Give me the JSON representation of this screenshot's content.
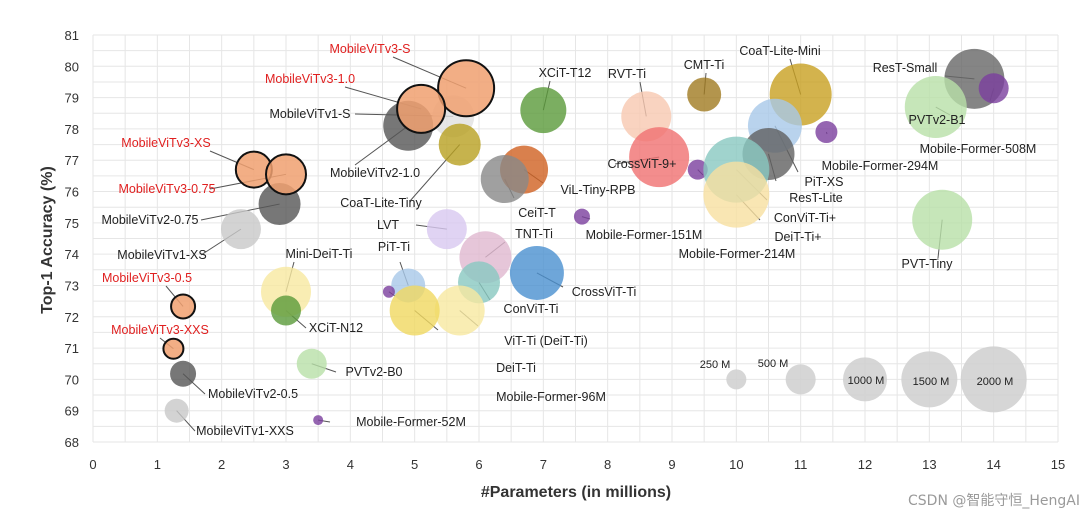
{
  "chart_data": {
    "type": "scatter",
    "subtype": "bubble",
    "xlabel": "#Parameters (in millions)",
    "ylabel": "Top-1 Accuracy (%)",
    "xlim": [
      0,
      15
    ],
    "ylim": [
      68,
      81
    ],
    "x_ticks": [
      "0",
      "1",
      "2",
      "3",
      "4",
      "5",
      "6",
      "7",
      "8",
      "9",
      "10",
      "11",
      "12",
      "13",
      "14",
      "15"
    ],
    "y_ticks": [
      "68",
      "69",
      "70",
      "71",
      "72",
      "73",
      "74",
      "75",
      "76",
      "77",
      "78",
      "79",
      "80",
      "81"
    ],
    "grid": true,
    "colors": {
      "mobilevitv3": "#f0a070",
      "mobilevitv2": "#555555",
      "mobilevitv1": "#c8c8c8",
      "mobileformer": "#7b3f9e",
      "highlight_label": "#e02020"
    },
    "series": [
      {
        "name": "MobileViTv3-S",
        "x": 5.8,
        "y": 79.3,
        "color": "#f0a070",
        "outline": true,
        "highlight": true
      },
      {
        "name": "MobileViTv3-1.0",
        "x": 5.1,
        "y": 78.64,
        "color": "#f0a070",
        "outline": true,
        "highlight": true
      },
      {
        "name": "MobileViTv3-XS",
        "x": 2.5,
        "y": 76.7,
        "color": "#f0a070",
        "outline": true,
        "highlight": true
      },
      {
        "name": "MobileViTv3-0.75",
        "x": 3.0,
        "y": 76.55,
        "color": "#f0a070",
        "outline": true,
        "highlight": true
      },
      {
        "name": "MobileViTv3-0.5",
        "x": 1.4,
        "y": 72.33,
        "color": "#f0a070",
        "outline": true,
        "highlight": true
      },
      {
        "name": "MobileViTv3-XXS",
        "x": 1.25,
        "y": 70.98,
        "color": "#f0a070",
        "outline": true,
        "highlight": true
      },
      {
        "name": "MobileViTv1-S",
        "x": 5.6,
        "y": 78.4,
        "color": "#e0e0e0"
      },
      {
        "name": "MobileViTv2-1.0",
        "x": 4.9,
        "y": 78.1,
        "color": "#555555"
      },
      {
        "name": "MobileViTv2-0.75",
        "x": 2.9,
        "y": 75.6,
        "color": "#555555"
      },
      {
        "name": "MobileViTv1-XS",
        "x": 2.3,
        "y": 74.8,
        "color": "#c8c8c8"
      },
      {
        "name": "MobileViTv2-0.5",
        "x": 1.4,
        "y": 70.18,
        "color": "#555555"
      },
      {
        "name": "MobileViTv1-XXS",
        "x": 1.3,
        "y": 69.0,
        "color": "#c8c8c8"
      },
      {
        "name": "CoaT-Lite-Tiny",
        "x": 5.7,
        "y": 77.5,
        "color": "#b8a020"
      },
      {
        "name": "XCiT-T12",
        "x": 7.0,
        "y": 78.6,
        "color": "#5a9a3a"
      },
      {
        "name": "RVT-Ti",
        "x": 8.6,
        "y": 78.4,
        "color": "#f8c8b0"
      },
      {
        "name": "CMT-Ti",
        "x": 9.5,
        "y": 79.1,
        "color": "#a07a20"
      },
      {
        "name": "CoaT-Lite-Mini",
        "x": 11.0,
        "y": 79.1,
        "color": "#c8a020"
      },
      {
        "name": "ResT-Small",
        "x": 13.7,
        "y": 79.6,
        "color": "#666666"
      },
      {
        "name": "PVTv2-B1",
        "x": 13.1,
        "y": 78.7,
        "color": "#b8e0a8"
      },
      {
        "name": "Mobile-Former-508M",
        "x": 14.0,
        "y": 79.3,
        "color": "#7b3f9e"
      },
      {
        "name": "Mobile-Former-294M",
        "x": 11.4,
        "y": 77.9,
        "color": "#7b3f9e"
      },
      {
        "name": "ViL-Tiny-RPB",
        "x": 6.7,
        "y": 76.7,
        "color": "#d06020"
      },
      {
        "name": "CeiT-T",
        "x": 6.4,
        "y": 76.4,
        "color": "#888888"
      },
      {
        "name": "CrossViT-9+",
        "x": 8.8,
        "y": 77.1,
        "color": "#f07070"
      },
      {
        "name": "Mobile-Former-214M",
        "x": 9.4,
        "y": 76.7,
        "color": "#7b3f9e"
      },
      {
        "name": "PiT-XS",
        "x": 10.6,
        "y": 78.1,
        "color": "#a8c8e8"
      },
      {
        "name": "ResT-Lite",
        "x": 10.5,
        "y": 77.2,
        "color": "#606060"
      },
      {
        "name": "ConViT-Ti+",
        "x": 10.0,
        "y": 76.7,
        "color": "#88c8c0"
      },
      {
        "name": "DeiT-Ti+",
        "x": 10.0,
        "y": 75.9,
        "color": "#f8e0a0"
      },
      {
        "name": "PVT-Tiny",
        "x": 13.2,
        "y": 75.1,
        "color": "#b8e0a8"
      },
      {
        "name": "Mobile-Former-151M",
        "x": 7.6,
        "y": 75.2,
        "color": "#7b3f9e"
      },
      {
        "name": "LVT",
        "x": 5.5,
        "y": 74.8,
        "color": "#d8c8f0"
      },
      {
        "name": "TNT-Ti",
        "x": 6.1,
        "y": 73.9,
        "color": "#e0b8d0"
      },
      {
        "name": "CrossViT-Ti",
        "x": 6.9,
        "y": 73.4,
        "color": "#4a90d0"
      },
      {
        "name": "PiT-Ti",
        "x": 4.9,
        "y": 73.0,
        "color": "#a8c8e8"
      },
      {
        "name": "ConViT-Ti",
        "x": 6.0,
        "y": 73.1,
        "color": "#88c8c0"
      },
      {
        "name": "ViT-Ti (DeiT-Ti)",
        "x": 5.7,
        "y": 72.2,
        "color": "#f8e8a0"
      },
      {
        "name": "DeiT-Ti",
        "x": 5.0,
        "y": 72.2,
        "color": "#f0d860"
      },
      {
        "name": "Mini-DeiT-Ti",
        "x": 3.0,
        "y": 72.8,
        "color": "#f8e8a0"
      },
      {
        "name": "XCiT-N12",
        "x": 3.0,
        "y": 72.2,
        "color": "#5a9a3a"
      },
      {
        "name": "Mobile-Former-96M",
        "x": 4.6,
        "y": 72.8,
        "color": "#7b3f9e"
      },
      {
        "name": "PVTv2-B0",
        "x": 3.4,
        "y": 70.5,
        "color": "#b8e0a8"
      },
      {
        "name": "Mobile-Former-52M",
        "x": 3.5,
        "y": 68.7,
        "color": "#7b3f9e"
      }
    ],
    "size_legend": [
      {
        "label": "250 M",
        "x": 10,
        "y": 70,
        "size": 250
      },
      {
        "label": "500 M",
        "x": 11,
        "y": 70,
        "size": 500
      },
      {
        "label": "1000 M",
        "x": 12,
        "y": 70,
        "size": 1000
      },
      {
        "label": "1500 M",
        "x": 13,
        "y": 70,
        "size": 1500
      },
      {
        "label": "2000 M",
        "x": 14,
        "y": 70,
        "size": 2000
      }
    ],
    "watermark": "CSDN @智能守恒_HengAI"
  }
}
